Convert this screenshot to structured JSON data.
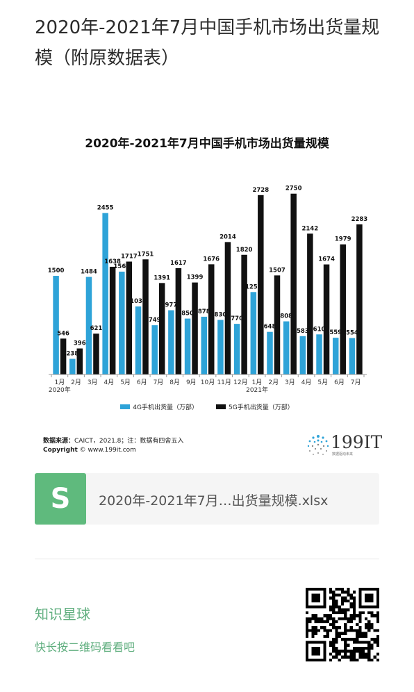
{
  "article": {
    "title": "2020年-2021年7月中国手机市场出货量规模（附原数据表）"
  },
  "chart_data": {
    "type": "bar",
    "title": "2020年-2021年7月中国手机市场出货量规模",
    "categories": [
      "1月",
      "2月",
      "3月",
      "4月",
      "5月",
      "6月",
      "7月",
      "8月",
      "9月",
      "10月",
      "11月",
      "12月",
      "1月",
      "2月",
      "3月",
      "4月",
      "5月",
      "6月",
      "7月"
    ],
    "year_labels": [
      {
        "index": 0,
        "label": "2020年"
      },
      {
        "index": 12,
        "label": "2021年"
      }
    ],
    "series": [
      {
        "name": "4G手机出货量（万部）",
        "color": "#2ea3d8",
        "values": [
          1500,
          238,
          1484,
          2455,
          1564,
          1034,
          749,
          977,
          850,
          878,
          830,
          770,
          1254,
          648,
          808,
          583,
          610,
          559,
          554
        ]
      },
      {
        "name": "5G手机出货量（万部）",
        "color": "#111111",
        "values": [
          546,
          396,
          621,
          1638,
          1717,
          1751,
          1391,
          1617,
          1399,
          1676,
          2014,
          1820,
          2728,
          1507,
          2750,
          2142,
          1674,
          1979,
          2283
        ]
      }
    ],
    "ylim": [
      0,
      2800
    ],
    "xlabel": "",
    "ylabel": "",
    "legend_position": "bottom",
    "grid": false
  },
  "chart_footer": {
    "source_label": "数据来源：",
    "source_text": "CAICT，2021.8；注：数据有四舍五入",
    "copyright_label": "Copyright",
    "copyright_text": "© www.199it.com"
  },
  "logo": {
    "text": "199IT",
    "subtext": "数据驱动未来"
  },
  "file": {
    "icon_letter": "S",
    "icon_color": "#5fba7d",
    "name": "2020年-2021年7月…出货量规模.xlsx"
  },
  "footer": {
    "planet_title": "知识星球",
    "planet_subtitle": "快长按二维码看看吧"
  }
}
